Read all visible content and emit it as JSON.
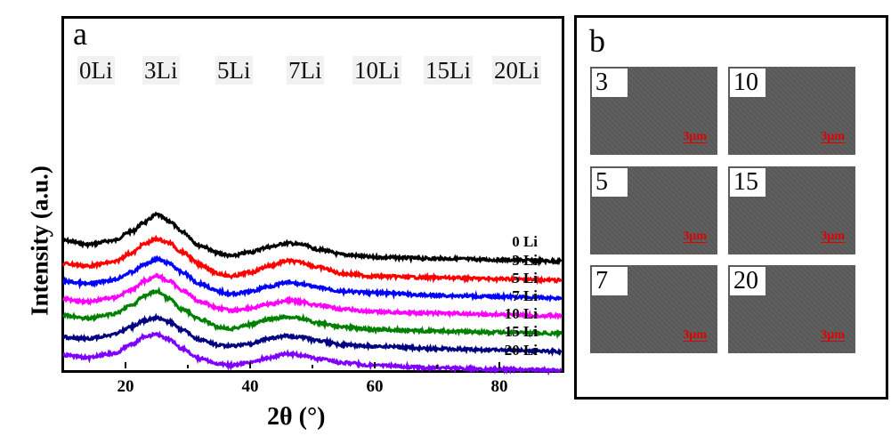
{
  "panel_a": {
    "letter": "a",
    "sample_photo_labels": [
      "0Li",
      "3Li",
      "5Li",
      "7Li",
      "10Li",
      "15Li",
      "20Li"
    ]
  },
  "panel_b": {
    "letter": "b",
    "images": [
      {
        "tag": "3",
        "scale_bar": "3μm"
      },
      {
        "tag": "10",
        "scale_bar": "3μm"
      },
      {
        "tag": "5",
        "scale_bar": "3μm"
      },
      {
        "tag": "15",
        "scale_bar": "3μm"
      },
      {
        "tag": "7",
        "scale_bar": "3μm"
      },
      {
        "tag": "20",
        "scale_bar": "3μm"
      }
    ]
  },
  "chart_data": {
    "type": "line",
    "title": "",
    "xlabel": "2θ (°)",
    "ylabel": "Intensity (a.u.)",
    "xlim": [
      10,
      90
    ],
    "xticks": [
      20,
      40,
      60,
      80
    ],
    "xticks_minor": [
      30,
      50,
      70
    ],
    "yticks": [],
    "grid": false,
    "legend": "inline-right",
    "x": [
      10,
      14,
      18,
      21,
      23,
      25,
      27,
      29,
      32,
      35,
      37,
      40,
      43,
      46,
      48,
      51,
      55,
      60,
      70,
      80,
      90
    ],
    "series": [
      {
        "name": "0 Li",
        "color": "#000000",
        "offset": 6,
        "values": [
          2.6,
          2.3,
          2.6,
          3.3,
          4.0,
          4.6,
          4.1,
          3.3,
          2.2,
          1.6,
          1.4,
          1.7,
          2.1,
          2.4,
          2.3,
          1.9,
          1.5,
          1.3,
          1.2,
          1.1,
          1.0
        ]
      },
      {
        "name": "3 Li",
        "color": "#ff0000",
        "offset": 5,
        "values": [
          2.2,
          2.0,
          2.3,
          3.0,
          3.7,
          4.1,
          3.8,
          3.1,
          2.1,
          1.4,
          1.2,
          1.5,
          2.0,
          2.4,
          2.3,
          1.9,
          1.4,
          1.2,
          1.1,
          1.0,
          0.9
        ]
      },
      {
        "name": "5 Li",
        "color": "#0000ff",
        "offset": 4,
        "values": [
          2.2,
          2.0,
          2.3,
          2.9,
          3.5,
          3.9,
          3.6,
          2.9,
          2.0,
          1.4,
          1.2,
          1.4,
          1.8,
          2.1,
          2.0,
          1.7,
          1.4,
          1.3,
          1.1,
          1.0,
          0.9
        ]
      },
      {
        "name": "7 Li",
        "color": "#ff00ff",
        "offset": 3,
        "values": [
          2.2,
          2.0,
          2.3,
          2.9,
          3.6,
          4.0,
          3.6,
          2.9,
          2.0,
          1.5,
          1.3,
          1.5,
          1.8,
          2.1,
          2.0,
          1.7,
          1.4,
          1.2,
          1.1,
          1.0,
          0.9
        ]
      },
      {
        "name": "10 Li",
        "color": "#008000",
        "offset": 2,
        "values": [
          2.3,
          2.1,
          2.4,
          3.1,
          3.8,
          4.2,
          3.6,
          2.8,
          2.0,
          1.4,
          1.3,
          1.6,
          2.0,
          2.2,
          2.1,
          1.7,
          1.4,
          1.2,
          1.1,
          1.0,
          0.9
        ]
      },
      {
        "name": "15 Li",
        "color": "#000080",
        "offset": 1,
        "values": [
          2.0,
          1.9,
          2.2,
          2.8,
          3.3,
          3.5,
          3.2,
          2.6,
          1.8,
          1.4,
          1.3,
          1.5,
          1.9,
          2.1,
          2.0,
          1.7,
          1.4,
          1.3,
          1.1,
          1.0,
          0.9
        ]
      },
      {
        "name": "20 Li",
        "color": "#8000ff",
        "offset": 0,
        "values": [
          2.0,
          1.8,
          2.1,
          2.8,
          3.4,
          3.6,
          3.2,
          2.5,
          1.7,
          1.3,
          1.2,
          1.4,
          1.8,
          2.1,
          2.0,
          1.7,
          1.4,
          1.2,
          1.0,
          0.9,
          0.8
        ]
      }
    ]
  }
}
